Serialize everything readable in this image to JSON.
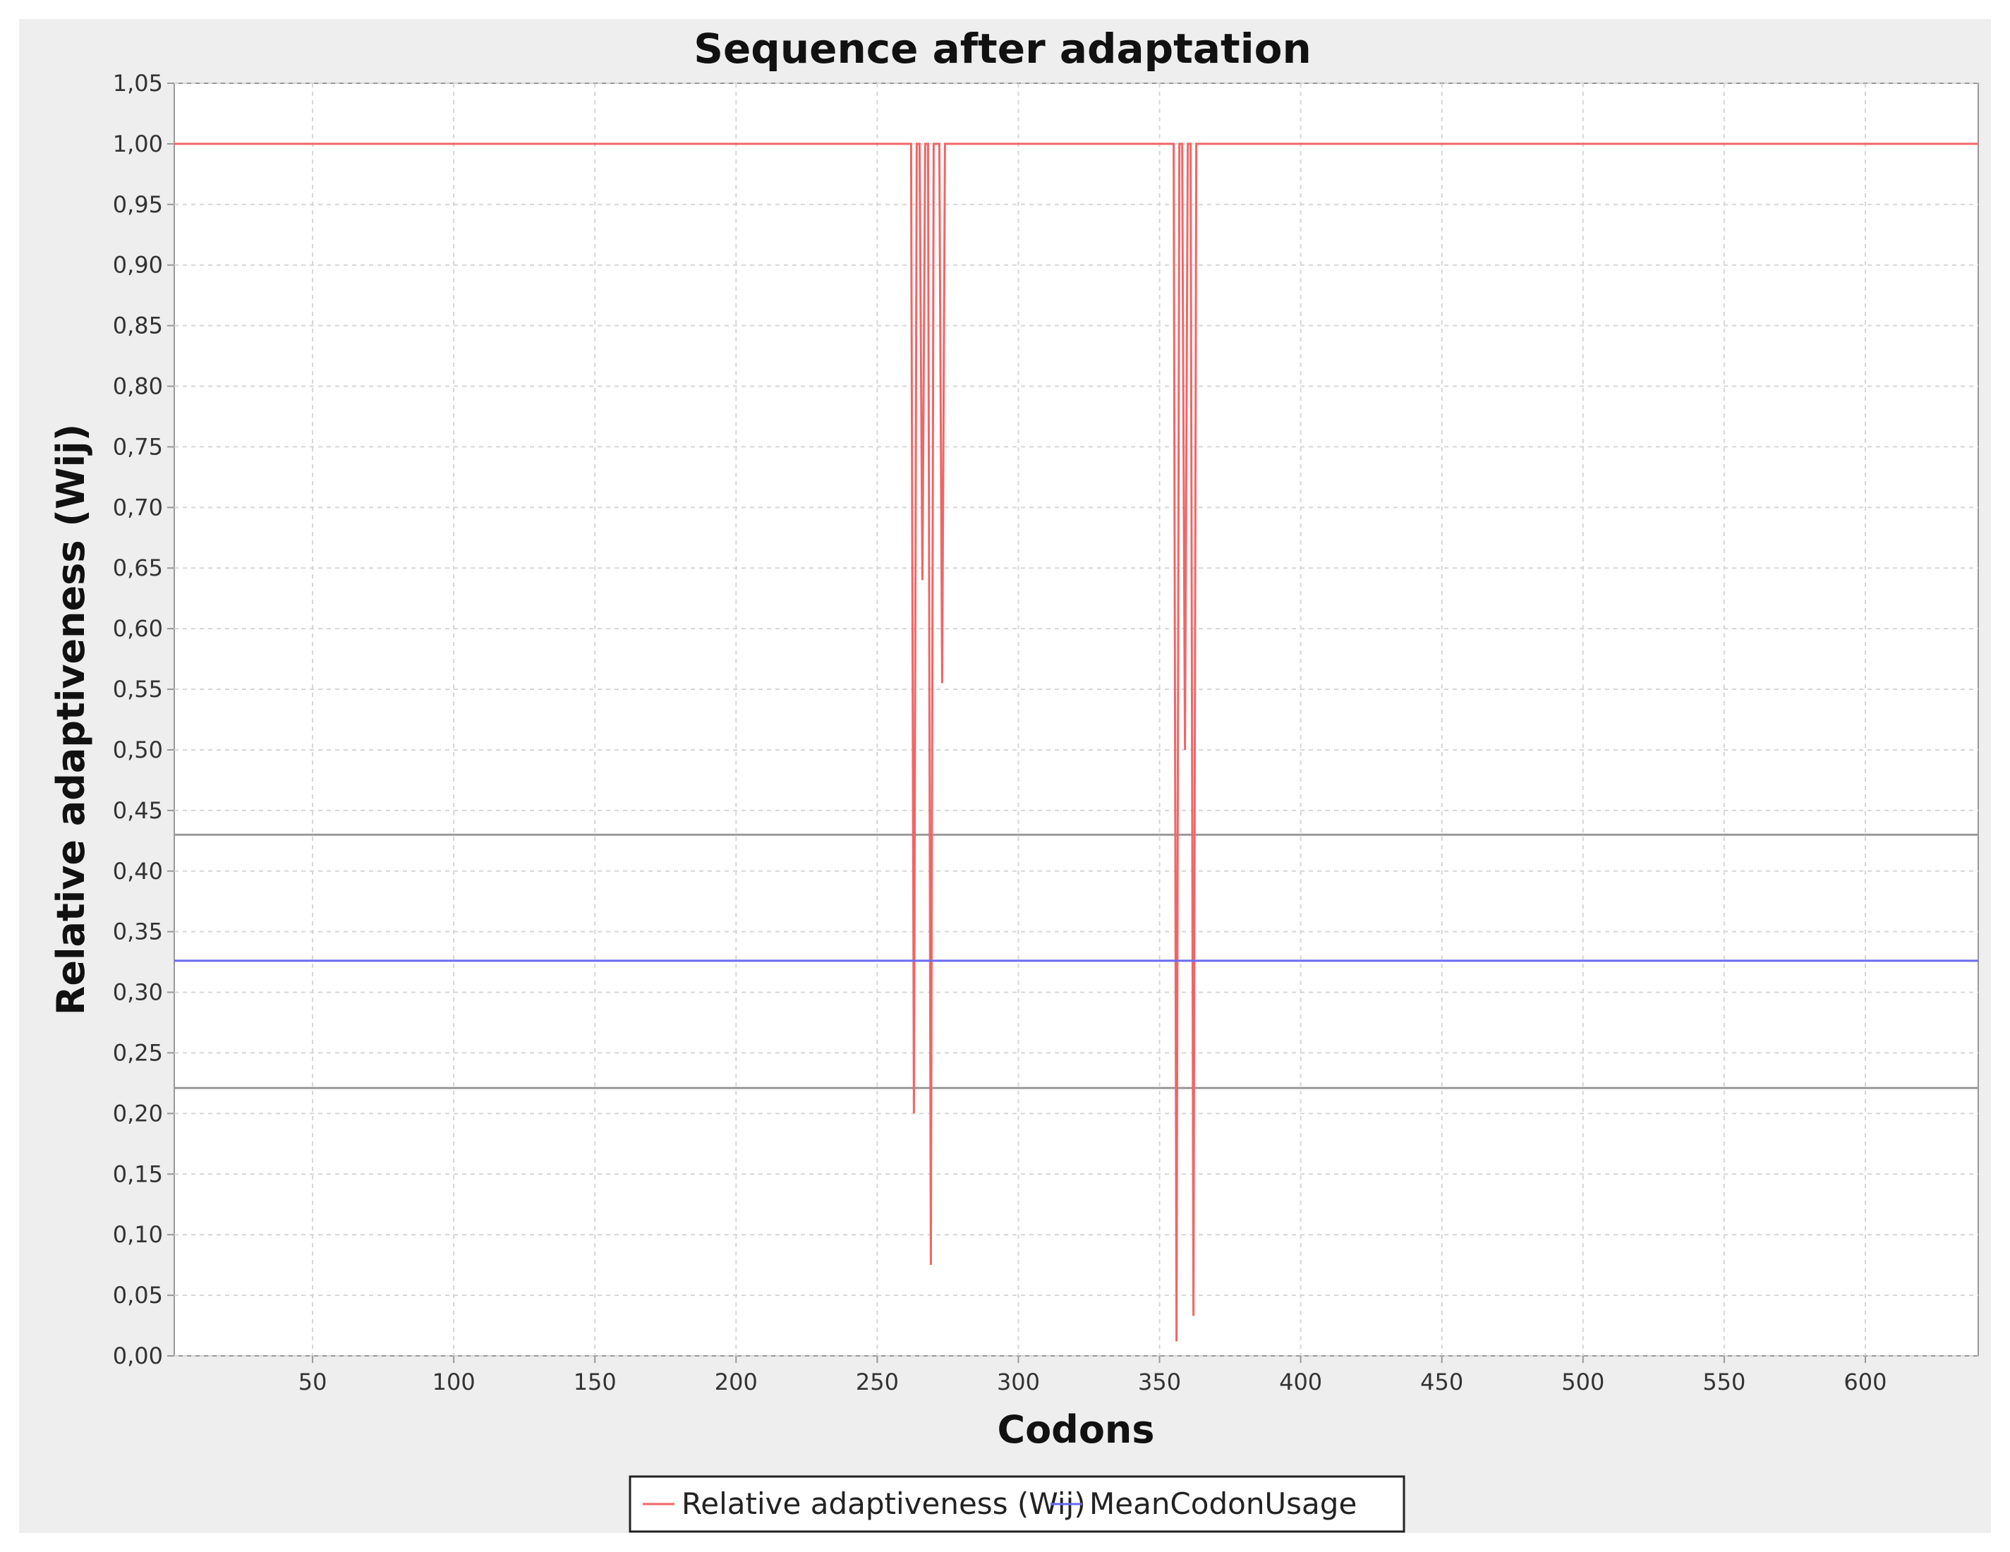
{
  "chart_data": {
    "type": "line",
    "title": "Sequence after adaptation",
    "xlabel": "Codons",
    "ylabel": "Relative adaptiveness (Wij)",
    "xlim": [
      1,
      640
    ],
    "ylim": [
      0.0,
      1.05
    ],
    "x_ticks": [
      50,
      100,
      150,
      200,
      250,
      300,
      350,
      400,
      450,
      500,
      550,
      600
    ],
    "y_ticks": [
      0.0,
      0.05,
      0.1,
      0.15,
      0.2,
      0.25,
      0.3,
      0.35,
      0.4,
      0.45,
      0.5,
      0.55,
      0.6,
      0.65,
      0.7,
      0.75,
      0.8,
      0.85,
      0.9,
      0.95,
      1.0,
      1.05
    ],
    "y_tick_labels": [
      "0,00",
      "0,05",
      "0,10",
      "0,15",
      "0,20",
      "0,25",
      "0,30",
      "0,35",
      "0,40",
      "0,45",
      "0,50",
      "0,55",
      "0,60",
      "0,65",
      "0,70",
      "0,75",
      "0,80",
      "0,85",
      "0,90",
      "0,95",
      "1,00",
      "1,05"
    ],
    "grid": true,
    "legend_position": "bottom",
    "series": [
      {
        "name": "Relative adaptiveness (Wij)",
        "color": "#f06666",
        "x": [
          1,
          262,
          263,
          264,
          265,
          266,
          267,
          268,
          269,
          270,
          271,
          272,
          273,
          274,
          355,
          356,
          357,
          358,
          359,
          360,
          361,
          362,
          363,
          640
        ],
        "y": [
          1.0,
          1.0,
          0.2,
          1.0,
          1.0,
          0.64,
          1.0,
          1.0,
          0.075,
          1.0,
          1.0,
          1.0,
          0.555,
          1.0,
          1.0,
          0.012,
          1.0,
          1.0,
          0.5,
          1.0,
          1.0,
          0.033,
          1.0,
          1.0
        ]
      },
      {
        "name": "MeanCodonUsage",
        "color": "#6a6af0",
        "x": [
          1,
          640
        ],
        "y": [
          0.326,
          0.326
        ]
      }
    ],
    "reference_lines": [
      {
        "y": 0.43,
        "color": "#999999"
      },
      {
        "y": 0.221,
        "color": "#999999"
      }
    ]
  }
}
